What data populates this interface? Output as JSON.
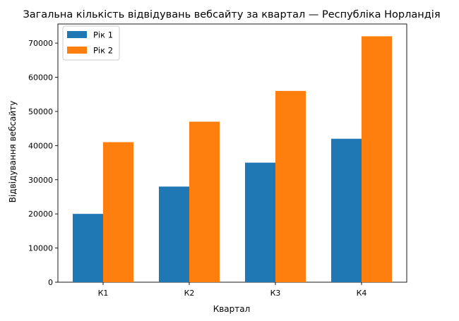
{
  "chart_data": {
    "type": "bar",
    "title": "Загальна кількість відвідувань вебсайту за квартал — Республіка Норландія",
    "xlabel": "Квартал",
    "ylabel": "Відвідування вебсайту",
    "categories": [
      "К1",
      "К2",
      "К3",
      "К4"
    ],
    "series": [
      {
        "name": "Рік 1",
        "values": [
          20000,
          28000,
          35000,
          42000
        ],
        "color": "#1f77b4"
      },
      {
        "name": "Рік 2",
        "values": [
          41000,
          47000,
          56000,
          72000
        ],
        "color": "#ff7f0e"
      }
    ],
    "ylim": [
      0,
      75600
    ],
    "yticks": [
      0,
      10000,
      20000,
      30000,
      40000,
      50000,
      60000,
      70000
    ],
    "grid": false,
    "legend": "top-left"
  }
}
